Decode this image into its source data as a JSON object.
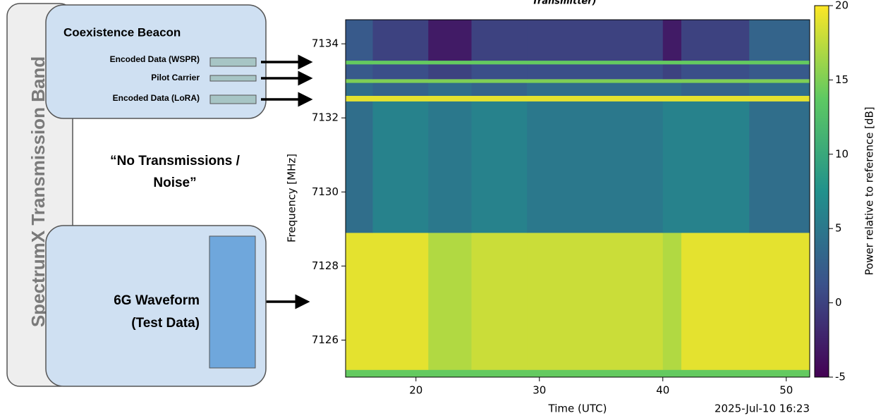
{
  "diagram": {
    "band_label": "SpectrumX Transmission Band",
    "beacon": {
      "title": "Coexistence Beacon",
      "signals": [
        "Encoded Data (WSPR)",
        "Pilot Carrier",
        "Encoded Data (LoRA)"
      ]
    },
    "noise": [
      "“No Transmissions /",
      "Noise”"
    ],
    "waveform": [
      "6G Waveform",
      "(Test Data)"
    ]
  },
  "chart_data": {
    "type": "heatmap",
    "title": "Transmitter)",
    "xlabel": "Time (UTC)",
    "ylabel": "Frequency [MHz]",
    "colorbar_label": "Power relative to reference [dB]",
    "annotation": "2025-Jul-10 16:23",
    "colormap": "viridis",
    "x": [
      14.3,
      16.5,
      21,
      24.5,
      29,
      40,
      41.5,
      47,
      51.9
    ],
    "y": [
      7125,
      7125.2,
      7128.9,
      7132.45,
      7132.6,
      7132.95,
      7133.05,
      7133.45,
      7133.55,
      7134.65
    ],
    "z": [
      [
        14,
        14,
        14,
        14,
        14,
        14,
        14,
        14
      ],
      [
        19,
        19,
        17,
        18,
        18,
        17,
        19,
        19
      ],
      [
        4,
        6,
        5,
        6,
        5,
        6,
        6,
        4
      ],
      [
        19,
        19,
        19,
        19,
        19,
        19,
        19,
        19
      ],
      [
        4,
        3,
        4,
        3,
        4,
        4,
        3,
        4
      ],
      [
        15,
        15,
        15,
        15,
        15,
        15,
        15,
        15
      ],
      [
        2,
        1,
        0,
        1,
        1,
        0,
        1,
        2
      ],
      [
        14,
        14,
        14,
        14,
        14,
        14,
        14,
        14
      ],
      [
        2,
        0,
        -3,
        0,
        0,
        -3,
        0,
        3
      ]
    ],
    "xlim": [
      14.3,
      51.9
    ],
    "xticks": [
      20,
      30,
      40,
      50
    ],
    "ylim": [
      7125,
      7134.65
    ],
    "yticks": [
      7126,
      7128,
      7130,
      7132,
      7134
    ],
    "zlim": [
      -5,
      20
    ],
    "zticks": [
      -5,
      0,
      5,
      10,
      15,
      20
    ]
  }
}
